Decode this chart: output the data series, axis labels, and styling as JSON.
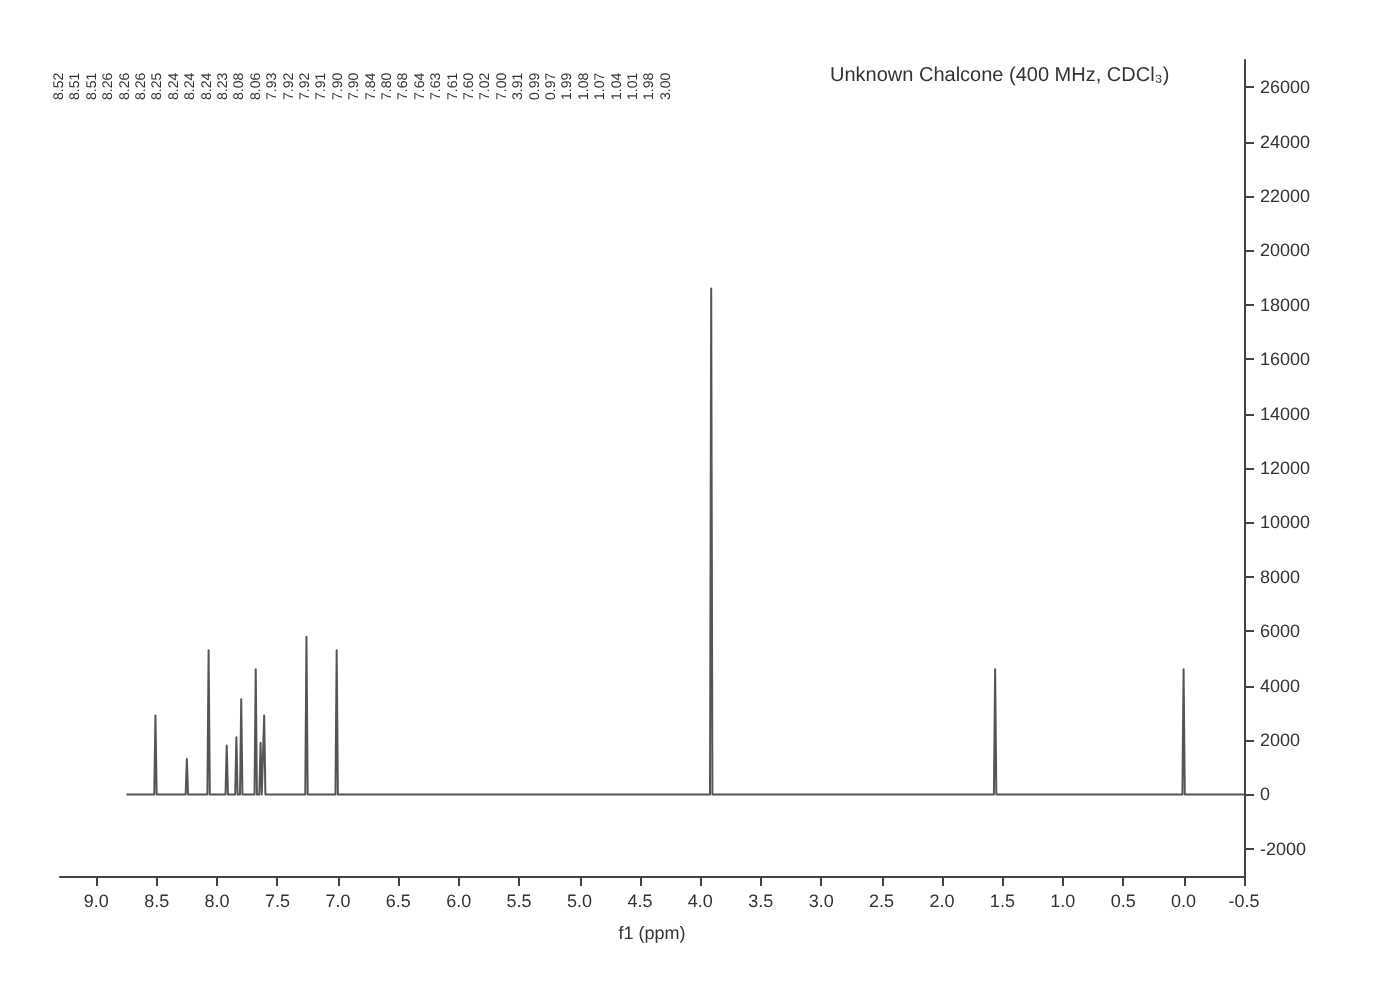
{
  "chart_data": {
    "type": "line",
    "title": "Unknown Chalcone (400 MHz, CDCl₃)",
    "xlabel": "f1 (ppm)",
    "x": [
      8.75,
      8.52,
      8.51,
      8.5,
      8.26,
      8.25,
      8.24,
      8.08,
      8.07,
      8.06,
      7.93,
      7.92,
      7.91,
      7.85,
      7.84,
      7.83,
      7.81,
      7.8,
      7.79,
      7.69,
      7.68,
      7.67,
      7.65,
      7.64,
      7.63,
      7.62,
      7.61,
      7.6,
      7.27,
      7.26,
      7.25,
      7.02,
      7.01,
      7.0,
      3.92,
      3.91,
      3.9,
      1.57,
      1.56,
      1.55,
      0.01,
      0.0,
      -0.01,
      -0.5
    ],
    "series": [
      {
        "color": "#555555",
        "values": [
          0,
          0,
          2900,
          0,
          0,
          1300,
          0,
          0,
          5300,
          0,
          0,
          1800,
          0,
          0,
          2100,
          0,
          0,
          3500,
          0,
          0,
          4600,
          0,
          0,
          1900,
          0,
          0,
          2900,
          0,
          0,
          5800,
          0,
          0,
          5300,
          0,
          0,
          18600,
          0,
          0,
          4600,
          0,
          0,
          4600,
          0,
          0
        ]
      }
    ],
    "xlim": [
      9.3,
      -0.5
    ],
    "xticks": [
      {
        "value": 9,
        "label": "9.0"
      },
      8.5,
      {
        "value": 8,
        "label": "8.0"
      },
      7.5,
      {
        "value": 7,
        "label": "7.0"
      },
      6.5,
      {
        "value": 6,
        "label": "6.0"
      },
      5.5,
      {
        "value": 5,
        "label": "5.0"
      },
      4.5,
      {
        "value": 4,
        "label": "4.0"
      },
      3.5,
      {
        "value": 3,
        "label": "3.0"
      },
      2.5,
      {
        "value": 2,
        "label": "2.0"
      },
      1.5,
      {
        "value": 1,
        "label": "1.0"
      },
      0.5,
      {
        "value": 0,
        "label": "0.0"
      },
      -0.5
    ],
    "ylim": [
      -3000,
      27000
    ],
    "yticks": [
      -2000,
      0,
      2000,
      4000,
      6000,
      8000,
      10000,
      12000,
      14000,
      16000,
      18000,
      20000,
      22000,
      24000,
      26000
    ],
    "grid": false,
    "marker": "none",
    "line_style": "solid",
    "annotations": [
      "8.52",
      "8.51",
      "8.51",
      "8.26",
      "8.26",
      "8.26",
      "8.25",
      "8.24",
      "8.24",
      "8.24",
      "8.23",
      "8.08",
      "8.06",
      "7.93",
      "7.92",
      "7.92",
      "7.91",
      "7.90",
      "7.90",
      "7.84",
      "7.80",
      "7.68",
      "7.64",
      "7.63",
      "7.61",
      "7.60",
      "7.02",
      "7.00",
      "3.91",
      "0.99",
      "0.97",
      "1.99",
      "1.08",
      "1.07",
      "1.04",
      "1.01",
      "1.98",
      "3.00"
    ]
  }
}
